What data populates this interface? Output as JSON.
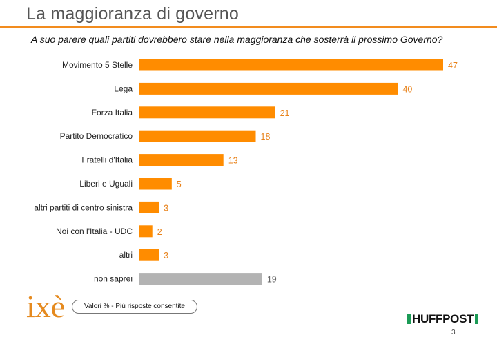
{
  "page": {
    "title": "La maggioranza di governo",
    "subtitle": "A suo parere quali partiti dovrebbero stare nella maggioranza che sosterrà il prossimo Governo?",
    "note": "Valori % - Più risposte consentite",
    "logo_left": "ixè",
    "logo_right": "HUFFPOST",
    "page_number": "3"
  },
  "colors": {
    "accent": "#ff8c00",
    "muted_bar": "#b3b3b3",
    "value_text_accent": "#e8821a",
    "value_text_muted": "#666666"
  },
  "chart_data": {
    "type": "bar",
    "orientation": "horizontal",
    "categories": [
      "Movimento 5 Stelle",
      "Lega",
      "Forza Italia",
      "Partito Democratico",
      "Fratelli d'Italia",
      "Liberi e Uguali",
      "altri partiti di centro sinistra",
      "Noi con l'Italia - UDC",
      "altri",
      "non saprei"
    ],
    "values": [
      47,
      40,
      21,
      18,
      13,
      5,
      3,
      2,
      3,
      19
    ],
    "highlight": [
      true,
      true,
      true,
      true,
      true,
      true,
      true,
      true,
      true,
      false
    ],
    "xlim": [
      0,
      47
    ],
    "grid": false,
    "legend": "none"
  }
}
